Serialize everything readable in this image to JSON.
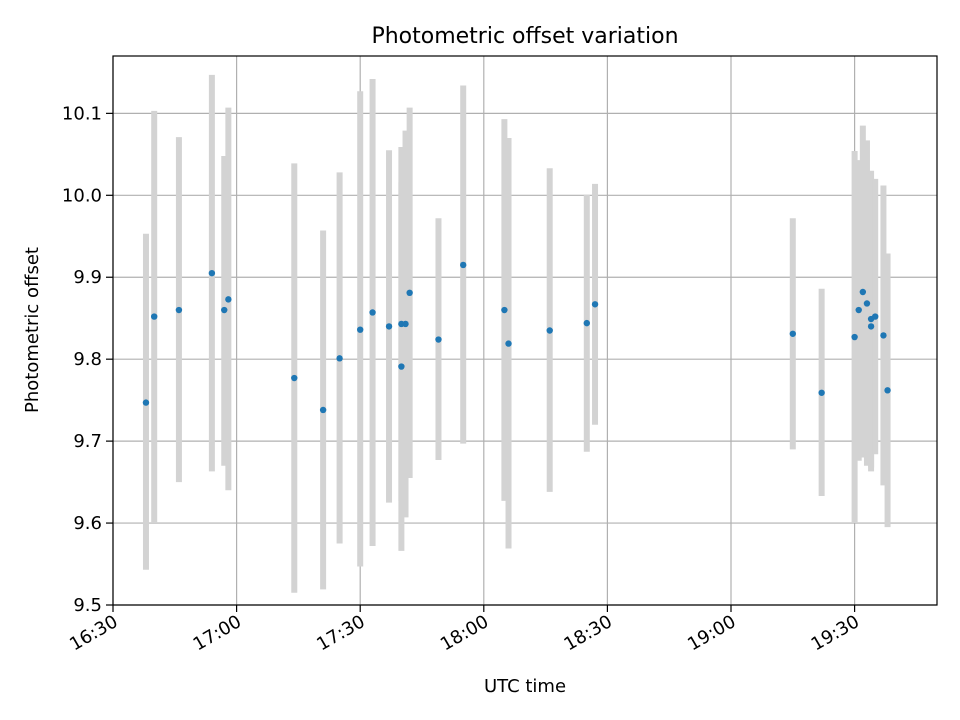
{
  "chart_data": {
    "type": "scatter",
    "title": "Photometric offset variation",
    "xlabel": "UTC time",
    "ylabel": "Photometric offset",
    "x_axis_kind": "time (HH:MM)",
    "xlim": [
      "16:30",
      "19:50"
    ],
    "ylim": [
      9.5,
      10.17
    ],
    "x_ticks": [
      "16:30",
      "17:00",
      "17:30",
      "18:00",
      "18:30",
      "19:00",
      "19:30"
    ],
    "y_ticks": [
      9.5,
      9.6,
      9.7,
      9.8,
      9.9,
      10.0,
      10.1
    ],
    "y_tick_labels": [
      "9.5",
      "9.6",
      "9.7",
      "9.8",
      "9.9",
      "10.0",
      "10.1"
    ],
    "grid": true,
    "point_color": "#1f77b4",
    "errorbar_color": "#d3d3d3",
    "points": [
      {
        "t": "16:38",
        "y": 9.747,
        "lo": 9.543,
        "hi": 9.953
      },
      {
        "t": "16:40",
        "y": 9.852,
        "lo": 9.6,
        "hi": 10.103
      },
      {
        "t": "16:46",
        "y": 9.86,
        "lo": 9.65,
        "hi": 10.071
      },
      {
        "t": "16:54",
        "y": 9.905,
        "lo": 9.663,
        "hi": 10.147
      },
      {
        "t": "16:57",
        "y": 9.86,
        "lo": 9.67,
        "hi": 10.048
      },
      {
        "t": "16:58",
        "y": 9.873,
        "lo": 9.64,
        "hi": 10.107
      },
      {
        "t": "17:14",
        "y": 9.777,
        "lo": 9.515,
        "hi": 10.039
      },
      {
        "t": "17:21",
        "y": 9.738,
        "lo": 9.519,
        "hi": 9.957
      },
      {
        "t": "17:25",
        "y": 9.801,
        "lo": 9.575,
        "hi": 10.028
      },
      {
        "t": "17:30",
        "y": 9.836,
        "lo": 9.547,
        "hi": 10.127
      },
      {
        "t": "17:33",
        "y": 9.857,
        "lo": 9.572,
        "hi": 10.142
      },
      {
        "t": "17:37",
        "y": 9.84,
        "lo": 9.625,
        "hi": 10.055
      },
      {
        "t": "17:40",
        "y": 9.843,
        "lo": 9.627,
        "hi": 10.059
      },
      {
        "t": "17:40",
        "y": 9.791,
        "lo": 9.566,
        "hi": 10.016
      },
      {
        "t": "17:41",
        "y": 9.843,
        "lo": 9.607,
        "hi": 10.079
      },
      {
        "t": "17:42",
        "y": 9.881,
        "lo": 9.655,
        "hi": 10.107
      },
      {
        "t": "17:49",
        "y": 9.824,
        "lo": 9.677,
        "hi": 9.972
      },
      {
        "t": "17:55",
        "y": 9.915,
        "lo": 9.697,
        "hi": 10.134
      },
      {
        "t": "18:05",
        "y": 9.86,
        "lo": 9.627,
        "hi": 10.093
      },
      {
        "t": "18:06",
        "y": 9.819,
        "lo": 9.569,
        "hi": 10.07
      },
      {
        "t": "18:16",
        "y": 9.835,
        "lo": 9.638,
        "hi": 10.033
      },
      {
        "t": "18:25",
        "y": 9.844,
        "lo": 9.687,
        "hi": 10.001
      },
      {
        "t": "18:27",
        "y": 9.867,
        "lo": 9.72,
        "hi": 10.014
      },
      {
        "t": "19:15",
        "y": 9.831,
        "lo": 9.69,
        "hi": 9.972
      },
      {
        "t": "19:22",
        "y": 9.759,
        "lo": 9.633,
        "hi": 9.886
      },
      {
        "t": "19:30",
        "y": 9.827,
        "lo": 9.6,
        "hi": 10.054
      },
      {
        "t": "19:31",
        "y": 9.86,
        "lo": 9.676,
        "hi": 10.043
      },
      {
        "t": "19:32",
        "y": 9.882,
        "lo": 9.68,
        "hi": 10.085
      },
      {
        "t": "19:33",
        "y": 9.868,
        "lo": 9.67,
        "hi": 10.067
      },
      {
        "t": "19:34",
        "y": 9.84,
        "lo": 9.663,
        "hi": 10.017
      },
      {
        "t": "19:34",
        "y": 9.849,
        "lo": 9.668,
        "hi": 10.03
      },
      {
        "t": "19:35",
        "y": 9.852,
        "lo": 9.684,
        "hi": 10.02
      },
      {
        "t": "19:37",
        "y": 9.829,
        "lo": 9.646,
        "hi": 10.012
      },
      {
        "t": "19:38",
        "y": 9.762,
        "lo": 9.595,
        "hi": 9.929
      }
    ]
  }
}
